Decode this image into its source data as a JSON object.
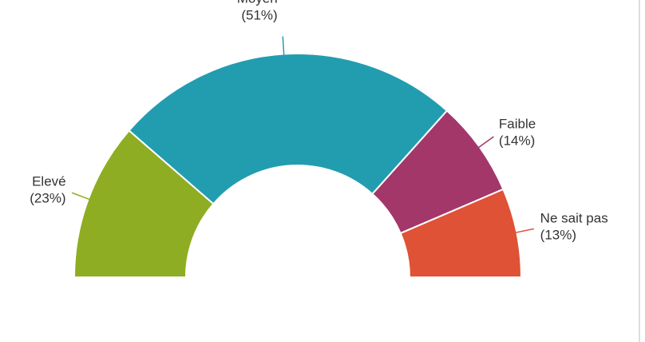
{
  "chart_data": {
    "type": "pie",
    "donut": true,
    "half": true,
    "categories": [
      "Elevé",
      "Moyen",
      "Faible",
      "Ne sait pas"
    ],
    "values": [
      23,
      51,
      14,
      13
    ],
    "value_labels": [
      "(23%)",
      "(51%)",
      "(14%)",
      "(13%)"
    ],
    "colors": [
      "#8fad22",
      "#229db0",
      "#a3376a",
      "#df5235"
    ]
  }
}
